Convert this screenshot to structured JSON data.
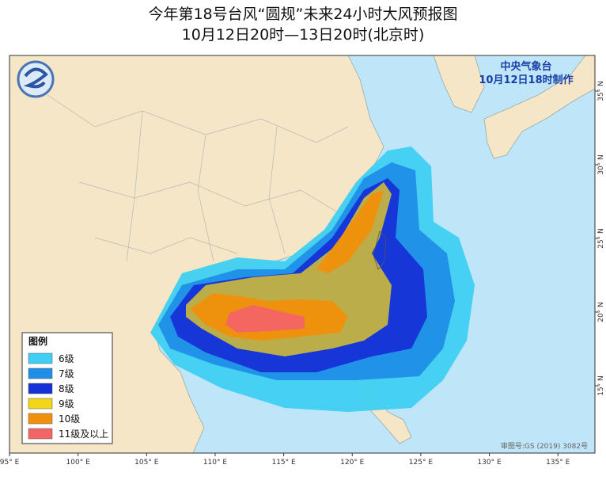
{
  "header": {
    "title": "今年第18号台风“圆规”未来24小时大风预报图",
    "subtitle": "10月12日20时—13日20时(北京时)"
  },
  "issuer": {
    "agency": "中央气象台",
    "issued": "10月12日18时制作"
  },
  "legend": {
    "title": "图例",
    "items": [
      {
        "label": "6级",
        "color": "#3ecff3"
      },
      {
        "label": "7级",
        "color": "#1f8ee6"
      },
      {
        "label": "8级",
        "color": "#1632d6"
      },
      {
        "label": "9级",
        "color": "#f3d51a"
      },
      {
        "label": "10级",
        "color": "#f0900c"
      },
      {
        "label": "11级及以上",
        "color": "#f26565"
      }
    ]
  },
  "map": {
    "lon_ticks": [
      {
        "value": 95,
        "label": "95° E"
      },
      {
        "value": 100,
        "label": "100° E"
      },
      {
        "value": 105,
        "label": "105° E"
      },
      {
        "value": 110,
        "label": "110° E"
      },
      {
        "value": 115,
        "label": "115° E"
      },
      {
        "value": 120,
        "label": "120° E"
      },
      {
        "value": 125,
        "label": "125° E"
      },
      {
        "value": 130,
        "label": "130° E"
      },
      {
        "value": 135,
        "label": "135° E"
      }
    ],
    "lat_ticks": [
      {
        "value": 15,
        "label": "15° N"
      },
      {
        "value": 20,
        "label": "20° N"
      },
      {
        "value": 25,
        "label": "25° N"
      },
      {
        "value": 30,
        "label": "30° N"
      },
      {
        "value": 35,
        "label": "35° N"
      }
    ],
    "approval": "审图号:GS (2019) 3082号"
  }
}
